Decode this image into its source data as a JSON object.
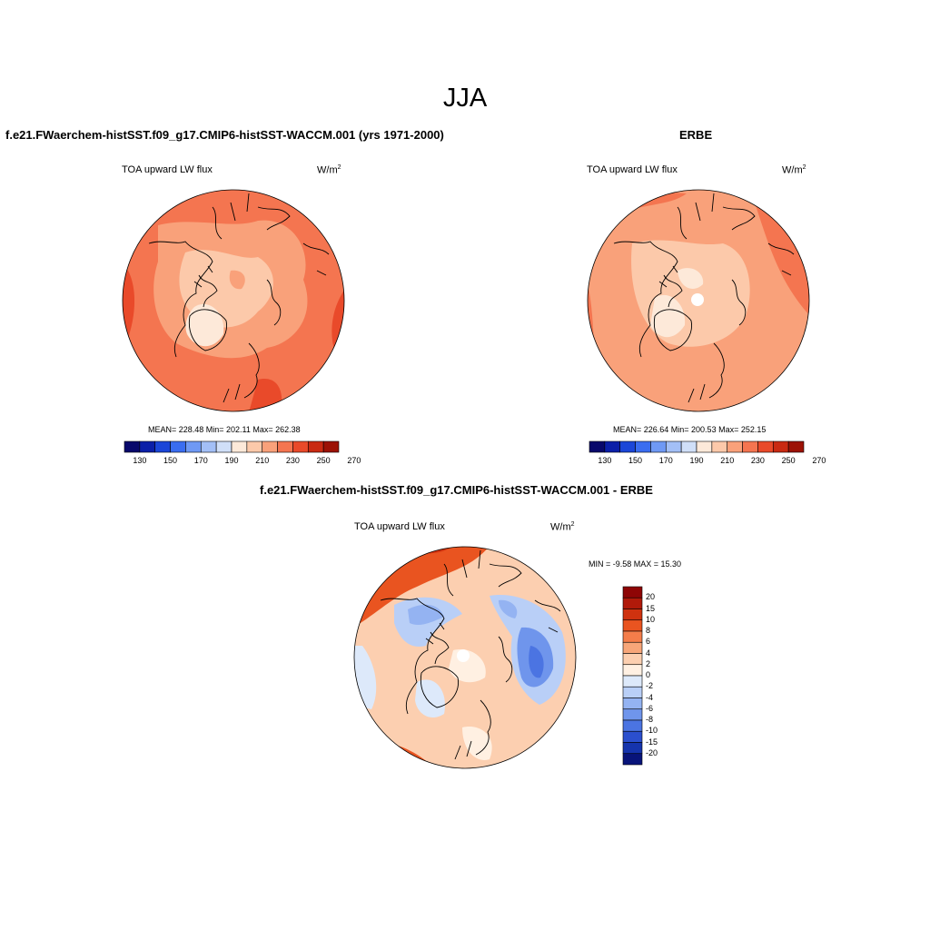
{
  "figure": {
    "title": "JJA"
  },
  "panels": {
    "model": {
      "title": "f.e21.FWaerchem-histSST.f09_g17.CMIP6-histSST-WACCM.001 (yrs 1971-2000)",
      "variable": "TOA upward LW flux",
      "units_base": "W/m",
      "units_sup": "2",
      "stats": "MEAN= 228.48  Min= 202.11  Max= 262.38"
    },
    "obs": {
      "title": "ERBE",
      "variable": "TOA upward LW flux",
      "units_base": "W/m",
      "units_sup": "2",
      "stats": "MEAN= 226.64  Min= 200.53  Max= 252.15"
    },
    "diff": {
      "title": "f.e21.FWaerchem-histSST.f09_g17.CMIP6-histSST-WACCM.001 - ERBE",
      "variable": "TOA upward LW flux",
      "units_base": "W/m",
      "units_sup": "2",
      "stats": "MIN =  -9.58 MAX =  15.30"
    }
  },
  "colorbars": {
    "abs": {
      "colors": [
        "#08086b",
        "#0b1fa8",
        "#1b46d8",
        "#3a6df0",
        "#6f99f4",
        "#a3bff6",
        "#d0dff8",
        "#fde9d9",
        "#fcc9aa",
        "#f9a17a",
        "#f47550",
        "#e94a2a",
        "#c92a12",
        "#9c1205"
      ],
      "tick_labels": [
        "130",
        "150",
        "170",
        "190",
        "210",
        "230",
        "250",
        "270"
      ]
    },
    "diff": {
      "colors": [
        "#8e0505",
        "#b11a0a",
        "#cf320f",
        "#e95420",
        "#f47d4a",
        "#f7a679",
        "#fccfb0",
        "#fff0e2",
        "#dde9fa",
        "#b9cff7",
        "#94b3f2",
        "#6f95ec",
        "#4b74e2",
        "#2b4fce",
        "#1534ad",
        "#08147a"
      ],
      "tick_labels": [
        "20",
        "15",
        "10",
        "8",
        "6",
        "4",
        "2",
        "0",
        "-2",
        "-4",
        "-6",
        "-8",
        "-10",
        "-15",
        "-20"
      ]
    }
  }
}
